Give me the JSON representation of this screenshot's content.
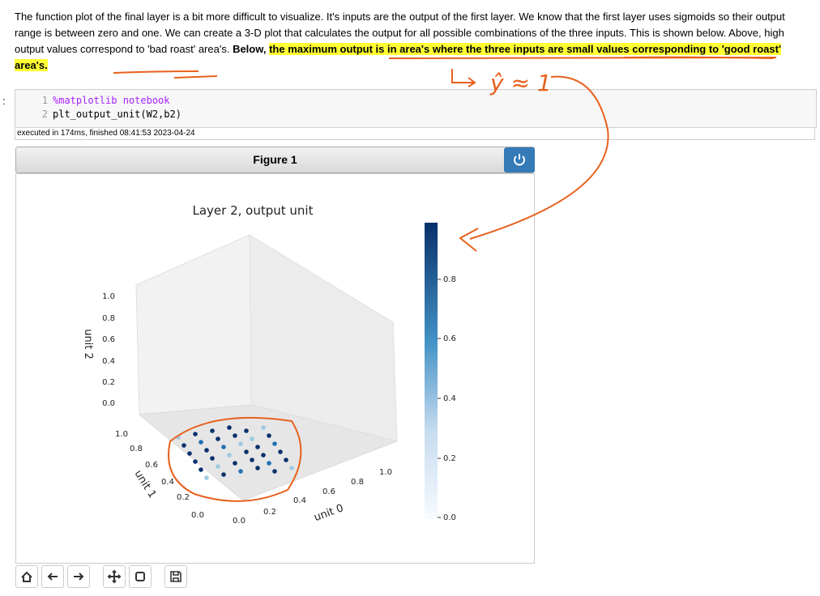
{
  "paragraph": {
    "segments": [
      {
        "text": "The function plot of the final layer is a bit more difficult to visualize. It's inputs are the output of the first layer. We know that the first layer uses sigmoids so their output range is between zero and one. We can create a 3-D plot that calculates the output for all possible combinations of the three inputs. This is shown below. Above, high output values correspond to 'bad roast' area's. ",
        "style": "normal"
      },
      {
        "text": "Below, ",
        "style": "bold"
      },
      {
        "text": "the maximum output is in area's where the three inputs are small values corresponding to 'good roast' area's.",
        "style": "bold-highlight"
      }
    ]
  },
  "cell": {
    "prompt": ":",
    "lines": [
      {
        "number": "1",
        "code": "%matplotlib notebook"
      },
      {
        "number": "2",
        "code": "plt_output_unit(W2,b2)"
      }
    ],
    "status": "executed in 174ms, finished 08:41:53 2023-04-24"
  },
  "figure": {
    "header": "Figure 1",
    "title": "Layer 2, output unit",
    "colorbar_ticks": [
      "0.0",
      "0.2",
      "0.4",
      "0.6",
      "0.8"
    ],
    "axis_x": {
      "label": "unit 0",
      "ticks": [
        "0.0",
        "0.2",
        "0.4",
        "0.6",
        "0.8",
        "1.0"
      ]
    },
    "axis_y": {
      "label": "unit 1",
      "ticks": [
        "0.0",
        "0.2",
        "0.4",
        "0.6",
        "0.8",
        "1.0"
      ]
    },
    "axis_z": {
      "label": "unit 2",
      "ticks": [
        "0.0",
        "0.2",
        "0.4",
        "0.6",
        "0.8",
        "1.0"
      ]
    }
  },
  "annotation": {
    "text": "ŷ ≈ 1"
  }
}
